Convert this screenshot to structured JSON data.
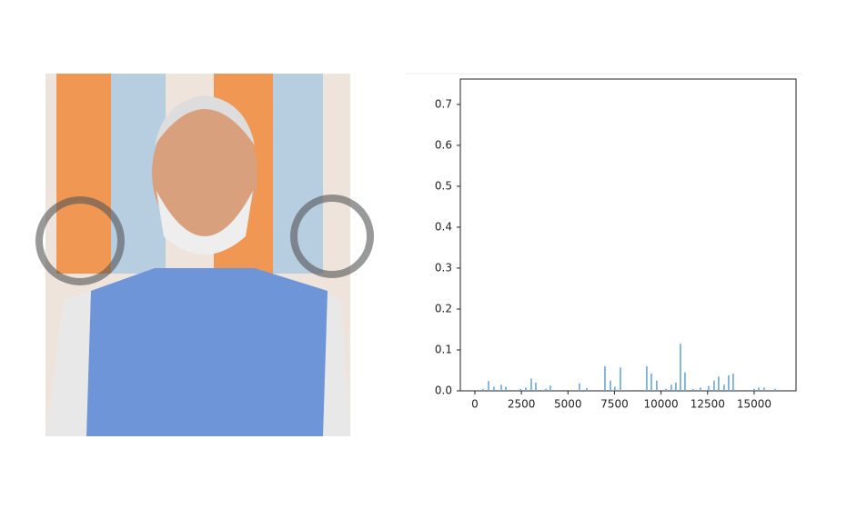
{
  "chart_data": {
    "type": "bar",
    "x": [
      440,
      733,
      1026,
      1417,
      1661,
      2443,
      2736,
      3029,
      3273,
      3810,
      4055,
      5618,
      6009,
      6986,
      7279,
      7523,
      7816,
      9233,
      9477,
      9770,
      10259,
      10552,
      10796,
      11040,
      11285,
      11725,
      12115,
      12555,
      12848,
      13092,
      13385,
      13630,
      13874,
      15000,
      15242,
      15535,
      16121
    ],
    "values": [
      0.005,
      0.024,
      0.01,
      0.015,
      0.01,
      0.005,
      0.008,
      0.03,
      0.02,
      0.005,
      0.013,
      0.018,
      0.007,
      0.06,
      0.025,
      0.01,
      0.057,
      0.06,
      0.042,
      0.025,
      0.005,
      0.015,
      0.02,
      0.115,
      0.045,
      0.005,
      0.008,
      0.012,
      0.025,
      0.035,
      0.015,
      0.038,
      0.042,
      0.005,
      0.008,
      0.008,
      0.005
    ],
    "color": "#6aa6d6",
    "xlim": [
      -780,
      17250
    ],
    "xticks": [
      0,
      2500,
      5000,
      7500,
      10000,
      12500,
      15000
    ],
    "ylim": [
      0,
      0.762
    ],
    "yticks": [
      {
        "value": 0,
        "label": "0.0"
      },
      0.1,
      0.2,
      0.3,
      0.4,
      0.5,
      0.6,
      0.7
    ]
  }
}
